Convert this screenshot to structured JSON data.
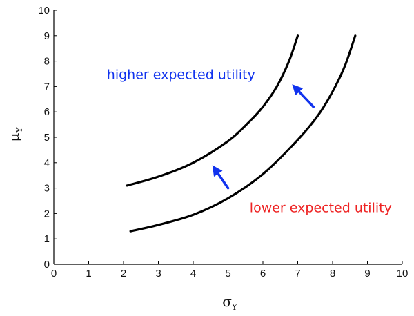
{
  "chart_data": {
    "type": "line",
    "title": "",
    "xlabel": {
      "symbol": "σ",
      "subscript": "Y"
    },
    "ylabel": {
      "symbol": "μ",
      "subscript": "Y"
    },
    "xlim": [
      0,
      10
    ],
    "ylim": [
      0,
      10
    ],
    "xticks": [
      "0",
      "1",
      "2",
      "3",
      "4",
      "5",
      "6",
      "7",
      "8",
      "9",
      "10"
    ],
    "yticks": [
      "0",
      "1",
      "2",
      "3",
      "4",
      "5",
      "6",
      "7",
      "8",
      "9",
      "10"
    ],
    "grid": false,
    "line_color": "#000000",
    "series": [
      {
        "x": [
          2.1,
          3.0,
          4.0,
          5.0,
          5.6,
          6.0,
          6.4,
          6.75,
          7.0
        ],
        "y": [
          3.1,
          3.45,
          4.0,
          4.85,
          5.6,
          6.2,
          7.0,
          8.0,
          9.0
        ]
      },
      {
        "x": [
          2.2,
          3.0,
          4.0,
          5.0,
          6.0,
          7.0,
          7.6,
          8.0,
          8.35,
          8.65
        ],
        "y": [
          1.3,
          1.55,
          1.95,
          2.6,
          3.55,
          4.9,
          5.9,
          6.8,
          7.8,
          9.0
        ]
      }
    ],
    "arrows": [
      {
        "from": [
          5.0,
          3.0
        ],
        "to": [
          4.6,
          3.8
        ],
        "color": "#1133ee"
      },
      {
        "from": [
          7.45,
          6.2
        ],
        "to": [
          6.9,
          7.0
        ],
        "color": "#1133ee"
      }
    ],
    "annotations": [
      {
        "text": "higher expected utility",
        "x": 3.65,
        "y": 7.3,
        "color": "#1133ee",
        "anchor": "middle"
      },
      {
        "text": "lower expected utility",
        "x": 9.7,
        "y": 2.05,
        "color": "#ee2222",
        "anchor": "end"
      }
    ]
  }
}
